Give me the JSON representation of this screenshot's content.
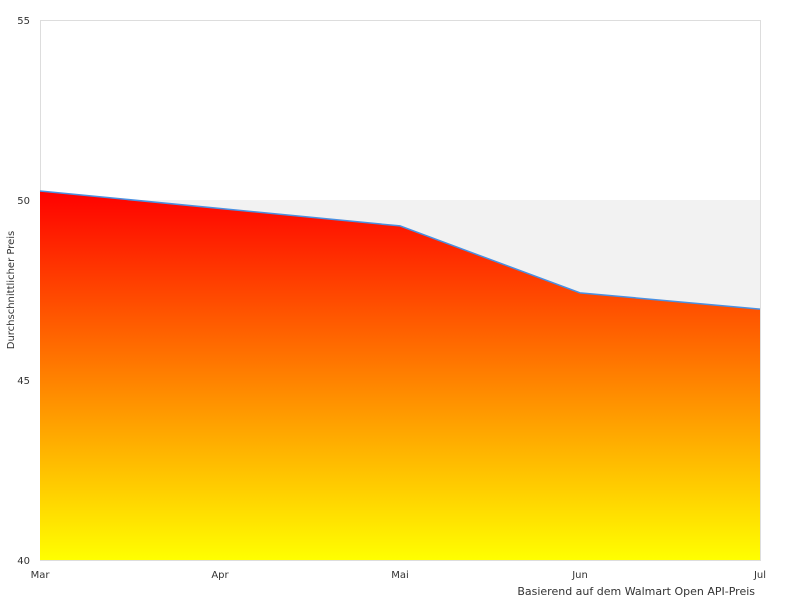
{
  "chart_data": {
    "type": "area",
    "categories": [
      "Mar",
      "Apr",
      "Mai",
      "Jun",
      "Jul"
    ],
    "series": [
      {
        "values": [
          50.25,
          null,
          49.28,
          47.42,
          46.97
        ]
      }
    ],
    "xlabel": "",
    "ylabel": "Durchschnittlicher Preis",
    "ylim": [
      40,
      55
    ],
    "yticks": [
      "40",
      "45",
      "50",
      "55"
    ],
    "plot_band": [
      40,
      50
    ],
    "grid": false,
    "credit": "Basierend auf dem Walmart Open API-Preis",
    "colors": {
      "gradient_top": "#ff0000",
      "gradient_bottom": "#ffff00",
      "line": "#4a90e2",
      "plot_band": "#f2f2f2",
      "border": "#dddddd"
    }
  }
}
